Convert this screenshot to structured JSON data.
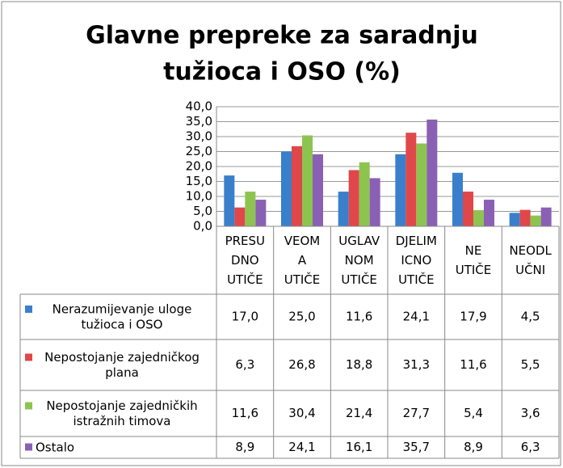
{
  "chart_data": {
    "type": "bar",
    "title": "Glavne prepreke za saradnju tužioca i OSO (%)",
    "categories": [
      "PRESU DNO UTIČE",
      "VEOM A UTIČE",
      "UGLAV NOM UTIČE",
      "DJELIM ICNO UTIČE",
      "NE UTIČE",
      "NEODL UČNI"
    ],
    "series": [
      {
        "name": "Nerazumijevanje uloge tužioca i OSO",
        "color": "#3a7fcc",
        "values": [
          17.0,
          25.0,
          11.6,
          24.1,
          17.9,
          4.5
        ],
        "value_labels": [
          "17,0",
          "25,0",
          "11,6",
          "24,1",
          "17,9",
          "4,5"
        ]
      },
      {
        "name": "Nepostojanje zajedničkog plana",
        "color": "#e0474a",
        "values": [
          6.3,
          26.8,
          18.8,
          31.3,
          11.6,
          5.5
        ],
        "value_labels": [
          "6,3",
          "26,8",
          "18,8",
          "31,3",
          "11,6",
          "5,5"
        ]
      },
      {
        "name": "Nepostojanje zajedničkih istražnih timova",
        "color": "#8dc44f",
        "values": [
          11.6,
          30.4,
          21.4,
          27.7,
          5.4,
          3.6
        ],
        "value_labels": [
          "11,6",
          "30,4",
          "21,4",
          "27,7",
          "5,4",
          "3,6"
        ]
      },
      {
        "name": "Ostalo",
        "color": "#8a60b4",
        "values": [
          8.9,
          24.1,
          16.1,
          35.7,
          8.9,
          6.3
        ],
        "value_labels": [
          "8,9",
          "24,1",
          "16,1",
          "35,7",
          "8,9",
          "6,3"
        ]
      }
    ],
    "ylim": [
      0,
      40
    ],
    "yticks": [
      {
        "value": 0,
        "label": "0,0"
      },
      {
        "value": 5,
        "label": "5,0"
      },
      {
        "value": 10,
        "label": "10,0"
      },
      {
        "value": 15,
        "label": "15,0"
      },
      {
        "value": 20,
        "label": "20,0"
      },
      {
        "value": 25,
        "label": "25,0"
      },
      {
        "value": 30,
        "label": "30,0"
      },
      {
        "value": 35,
        "label": "35,0"
      },
      {
        "value": 40,
        "label": "40,0"
      }
    ],
    "grid": true
  }
}
